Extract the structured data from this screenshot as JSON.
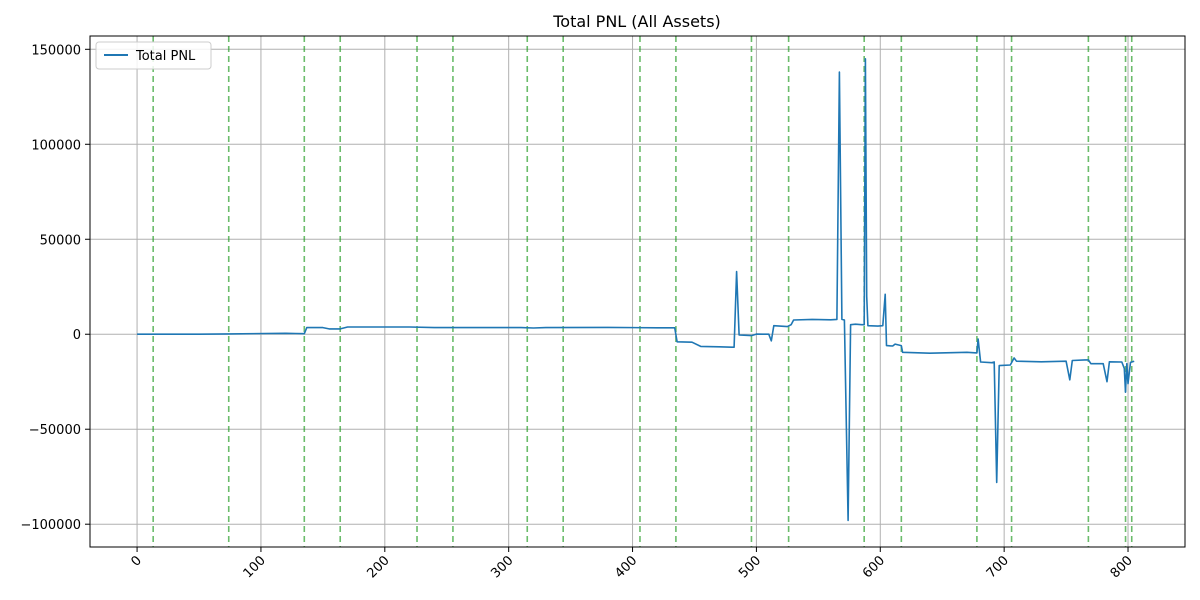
{
  "chart_data": {
    "type": "line",
    "title": "Total PNL (All Assets)",
    "xlabel": "",
    "ylabel": "",
    "xlim": [
      -38,
      846
    ],
    "ylim": [
      -112000,
      157000
    ],
    "x_ticks": [
      0,
      100,
      200,
      300,
      400,
      500,
      600,
      700,
      800
    ],
    "y_ticks": [
      -100000,
      -50000,
      0,
      50000,
      100000,
      150000
    ],
    "x_tick_labels": [
      "0",
      "100",
      "200",
      "300",
      "400",
      "500",
      "600",
      "700",
      "800"
    ],
    "y_tick_labels": [
      "−100000",
      "−50000",
      "0",
      "50000",
      "100000",
      "150000"
    ],
    "grid": true,
    "legend": {
      "position": "top-left",
      "entries": [
        "Total PNL"
      ]
    },
    "colors": {
      "series": "#1f77b4",
      "vlines": "#2ca02c",
      "grid": "#b0b0b0"
    },
    "vertical_lines": [
      13,
      74,
      135,
      164,
      226,
      255,
      315,
      344,
      406,
      435,
      496,
      526,
      587,
      617,
      678,
      706,
      768,
      798,
      803
    ],
    "series": [
      {
        "name": "Total PNL",
        "points": [
          [
            0,
            0
          ],
          [
            50,
            0
          ],
          [
            74,
            200
          ],
          [
            120,
            500
          ],
          [
            128,
            400
          ],
          [
            135,
            300
          ],
          [
            137,
            3500
          ],
          [
            150,
            3500
          ],
          [
            155,
            2800
          ],
          [
            164,
            2800
          ],
          [
            170,
            3800
          ],
          [
            220,
            3800
          ],
          [
            240,
            3500
          ],
          [
            310,
            3500
          ],
          [
            320,
            3300
          ],
          [
            330,
            3500
          ],
          [
            380,
            3600
          ],
          [
            420,
            3400
          ],
          [
            434,
            3400
          ],
          [
            436,
            -4000
          ],
          [
            448,
            -4200
          ],
          [
            455,
            -6400
          ],
          [
            470,
            -6600
          ],
          [
            480,
            -6800
          ],
          [
            482,
            -6800
          ],
          [
            484,
            33000
          ],
          [
            486,
            -400
          ],
          [
            490,
            -500
          ],
          [
            496,
            -700
          ],
          [
            500,
            100
          ],
          [
            510,
            0
          ],
          [
            512,
            -3500
          ],
          [
            514,
            4500
          ],
          [
            525,
            4000
          ],
          [
            528,
            5000
          ],
          [
            530,
            7500
          ],
          [
            545,
            7800
          ],
          [
            560,
            7600
          ],
          [
            565,
            7800
          ],
          [
            567,
            138000
          ],
          [
            569,
            7800
          ],
          [
            571,
            7500
          ],
          [
            574,
            -98000
          ],
          [
            576,
            5000
          ],
          [
            580,
            5300
          ],
          [
            585,
            5000
          ],
          [
            587,
            5000
          ],
          [
            588,
            145000
          ],
          [
            589,
            20000
          ],
          [
            590,
            4500
          ],
          [
            598,
            4300
          ],
          [
            602,
            4500
          ],
          [
            604,
            21000
          ],
          [
            605,
            -6000
          ],
          [
            610,
            -6200
          ],
          [
            612,
            -5200
          ],
          [
            617,
            -6000
          ],
          [
            618,
            -9500
          ],
          [
            640,
            -10000
          ],
          [
            670,
            -9500
          ],
          [
            678,
            -9800
          ],
          [
            679,
            -2500
          ],
          [
            681,
            -14600
          ],
          [
            690,
            -15000
          ],
          [
            692,
            -14600
          ],
          [
            694,
            -78000
          ],
          [
            696,
            -16500
          ],
          [
            705,
            -16200
          ],
          [
            708,
            -12500
          ],
          [
            710,
            -14200
          ],
          [
            730,
            -14500
          ],
          [
            750,
            -14200
          ],
          [
            753,
            -24000
          ],
          [
            755,
            -13800
          ],
          [
            765,
            -13500
          ],
          [
            768,
            -13500
          ],
          [
            770,
            -15500
          ],
          [
            780,
            -15500
          ],
          [
            783,
            -25000
          ],
          [
            785,
            -14500
          ],
          [
            795,
            -14600
          ],
          [
            797,
            -18000
          ],
          [
            798,
            -30500
          ],
          [
            799,
            -15500
          ],
          [
            800,
            -26000
          ],
          [
            802,
            -14800
          ],
          [
            805,
            -14200
          ]
        ]
      }
    ]
  }
}
